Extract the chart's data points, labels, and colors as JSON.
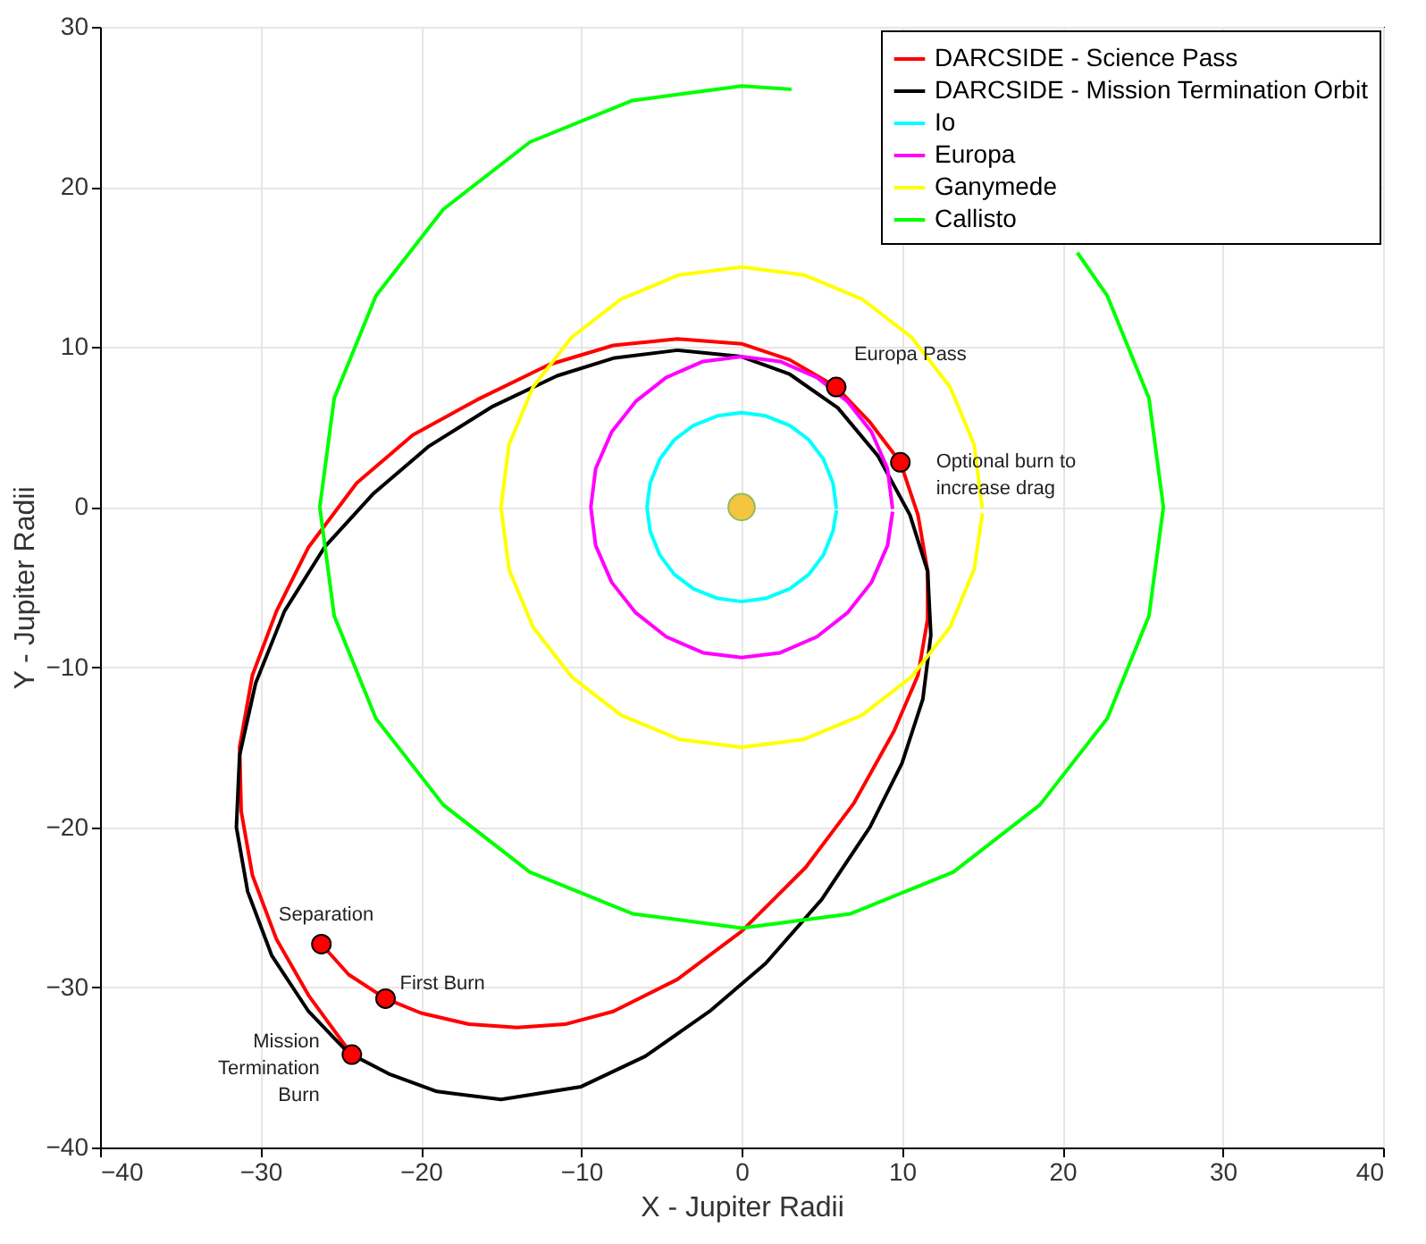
{
  "chart_data": {
    "type": "line",
    "xlabel": "X - Jupiter Radii",
    "ylabel": "Y - Jupiter Radii",
    "xlim": [
      -40,
      40
    ],
    "ylim": [
      -40,
      30
    ],
    "xticks": [
      -40,
      -30,
      -20,
      -10,
      0,
      10,
      20,
      30,
      40
    ],
    "yticks": [
      -40,
      -30,
      -20,
      -10,
      0,
      10,
      20,
      30
    ],
    "grid": true,
    "legend": "top right",
    "line_style": "solid",
    "series": [
      {
        "name": "DARCSIDE - Science Pass",
        "color": "#ff0000",
        "x": [
          -26.2,
          -24.5,
          -22.2,
          -20,
          -17,
          -14,
          -11,
          -8,
          -4,
          0,
          4,
          7,
          9.5,
          11,
          11.6,
          11.6,
          11,
          9.9,
          8,
          5.9,
          3,
          0,
          -4,
          -8,
          -12,
          -16.5,
          -20.5,
          -24,
          -27,
          -29,
          -30.5,
          -31.3,
          -31.2,
          -30.5,
          -29,
          -27,
          -24.3
        ],
        "values": [
          -27.3,
          -29.2,
          -30.7,
          -31.6,
          -32.3,
          -32.5,
          -32.3,
          -31.5,
          -29.5,
          -26.5,
          -22.5,
          -18.5,
          -14,
          -10.5,
          -7,
          -4,
          -0.5,
          2.8,
          5.3,
          7.5,
          9.2,
          10.2,
          10.5,
          10.1,
          8.9,
          6.7,
          4.5,
          1.5,
          -2.5,
          -6.5,
          -10.5,
          -15,
          -19,
          -23,
          -27,
          -30.5,
          -34.2
        ]
      },
      {
        "name": "DARCSIDE - Mission Termination Orbit",
        "color": "#000000",
        "x": [
          -24.3,
          -22,
          -19,
          -15,
          -10,
          -6,
          -2,
          1.5,
          5,
          8,
          10,
          11.3,
          11.8,
          11.6,
          10.5,
          8.5,
          6,
          3,
          0,
          -4,
          -8,
          -11.5,
          -15.5,
          -19.5,
          -23,
          -26,
          -28.5,
          -30.3,
          -31.3,
          -31.5,
          -30.8,
          -29.3,
          -27,
          -24.8
        ],
        "values": [
          -34.2,
          -35.4,
          -36.5,
          -37,
          -36.2,
          -34.3,
          -31.5,
          -28.5,
          -24.5,
          -20,
          -16,
          -12,
          -8,
          -4,
          -0.5,
          3.2,
          6.2,
          8.3,
          9.4,
          9.8,
          9.3,
          8.2,
          6.3,
          3.8,
          0.8,
          -2.5,
          -6.5,
          -11,
          -15.5,
          -20,
          -24,
          -28,
          -31.5,
          -33.8
        ]
      },
      {
        "name": "Io",
        "color": "#00ffff",
        "x": [
          5.9,
          5.7,
          5.1,
          4.2,
          3,
          1.5,
          0,
          -1.5,
          -3,
          -4.2,
          -5.1,
          -5.7,
          -5.9,
          -5.7,
          -5.1,
          -4.2,
          -3,
          -1.5,
          0,
          1.5,
          3,
          4.2,
          5.1,
          5.7,
          5.9
        ],
        "values": [
          0,
          1.5,
          3,
          4.2,
          5.1,
          5.7,
          5.9,
          5.7,
          5.1,
          4.2,
          3,
          1.5,
          0,
          -1.5,
          -3,
          -4.2,
          -5.1,
          -5.7,
          -5.9,
          -5.7,
          -5.1,
          -4.2,
          -3,
          -1.5,
          -0.3
        ]
      },
      {
        "name": "Europa",
        "color": "#ff00ff",
        "x": [
          9.4,
          9.1,
          8.1,
          6.6,
          4.7,
          2.4,
          0,
          -2.4,
          -4.7,
          -6.6,
          -8.1,
          -9.1,
          -9.4,
          -9.1,
          -8.1,
          -6.6,
          -4.7,
          -2.4,
          0,
          2.4,
          4.7,
          6.6,
          8.1,
          9.1,
          9.4
        ],
        "values": [
          0,
          2.4,
          4.7,
          6.6,
          8.1,
          9.1,
          9.4,
          9.1,
          8.1,
          6.6,
          4.7,
          2.4,
          0,
          -2.4,
          -4.7,
          -6.6,
          -8.1,
          -9.1,
          -9.4,
          -9.1,
          -8.1,
          -6.6,
          -4.7,
          -2.4,
          -0.4
        ]
      },
      {
        "name": "Ganymede",
        "color": "#ffff00",
        "x": [
          15,
          14.5,
          13,
          10.6,
          7.5,
          3.9,
          0,
          -3.9,
          -7.5,
          -10.6,
          -13,
          -14.5,
          -15,
          -14.5,
          -13,
          -10.6,
          -7.5,
          -3.9,
          0,
          3.9,
          7.5,
          10.6,
          13,
          14.5,
          15
        ],
        "values": [
          0,
          3.9,
          7.5,
          10.6,
          13,
          14.5,
          15,
          14.5,
          13,
          10.6,
          7.5,
          3.9,
          0,
          -3.9,
          -7.5,
          -10.6,
          -13,
          -14.5,
          -15,
          -14.5,
          -13,
          -10.6,
          -7.5,
          -3.9,
          -0.5
        ]
      },
      {
        "name": "Callisto",
        "color": "#00ff00",
        "x": [
          3,
          0,
          -6.8,
          -13.2,
          -18.6,
          -22.8,
          -25.4,
          -26.3,
          -25.4,
          -22.8,
          -18.6,
          -13.2,
          -6.8,
          0,
          6.8,
          13.2,
          18.6,
          22.8,
          25.4,
          26.3,
          25.4,
          22.8,
          21
        ],
        "values": [
          26.1,
          26.3,
          25.4,
          22.8,
          18.6,
          13.2,
          6.8,
          0,
          -6.8,
          -13.2,
          -18.6,
          -22.8,
          -25.4,
          -26.3,
          -25.4,
          -22.8,
          -18.6,
          -13.2,
          -6.8,
          0,
          6.8,
          13.2,
          15.8
        ]
      },
      {
        "color": "#f5c542",
        "type": "scatter",
        "marker": "circle",
        "x": [
          0
        ],
        "values": [
          0
        ]
      },
      {
        "color": "#ff0000",
        "type": "scatter",
        "marker": "circle",
        "x": [
          5.9,
          9.9,
          -26.2,
          -22.2,
          -24.3
        ],
        "values": [
          7.5,
          2.8,
          -27.3,
          -30.7,
          -34.2
        ]
      }
    ],
    "annotations": [
      {
        "text": "Europa Pass",
        "x": 5.9,
        "y": 7.5
      },
      {
        "text": "Optional burn to increase drag",
        "x": 9.9,
        "y": 2.8
      },
      {
        "text": "Separation",
        "x": -26.2,
        "y": -27.3
      },
      {
        "text": "First Burn",
        "x": -22.2,
        "y": -30.7
      },
      {
        "text": "Mission Termination Burn",
        "x": -24.3,
        "y": -34.2
      }
    ]
  }
}
